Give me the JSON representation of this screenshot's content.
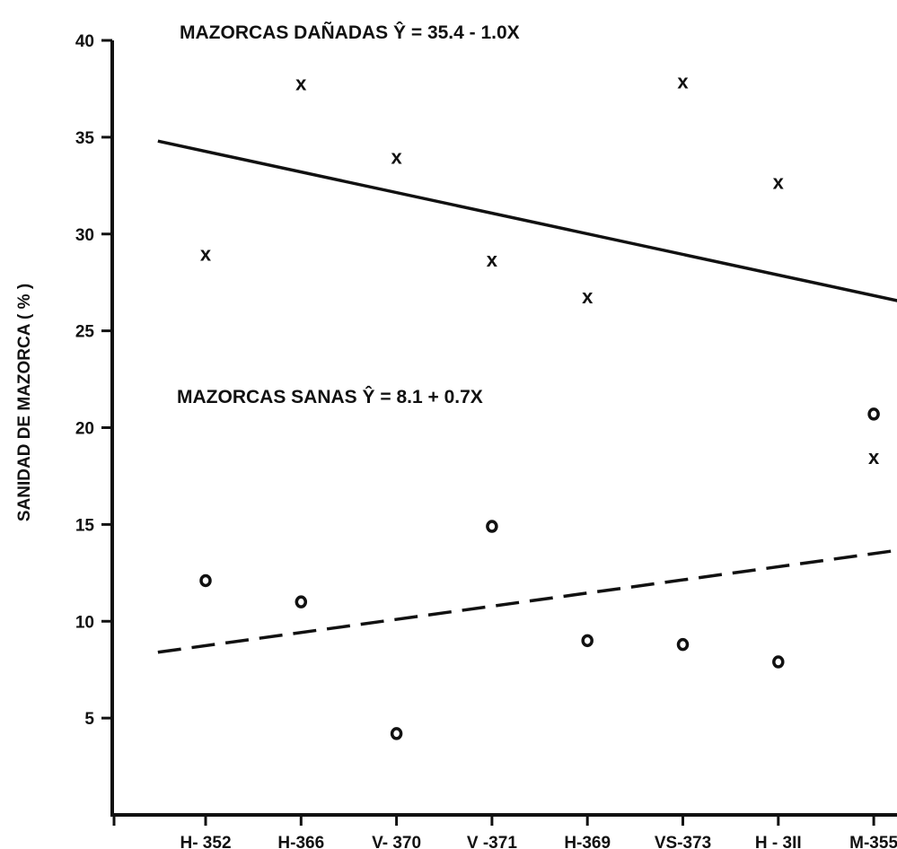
{
  "chart_data": {
    "type": "scatter",
    "ylabel": "SANIDAD DE MAZORCA ( % )",
    "xlabel": "",
    "ylim": [
      0,
      40
    ],
    "yticks": [
      5,
      10,
      15,
      20,
      25,
      30,
      35,
      40
    ],
    "categories": [
      "H- 352",
      "H-366",
      "V- 370",
      "V -371",
      "H-369",
      "VS-373",
      "H - 3II",
      "M-355"
    ],
    "grid": false,
    "series": [
      {
        "name": "MAZORCAS DAÑADAS",
        "marker": "x",
        "values": [
          29.0,
          37.8,
          34.0,
          28.7,
          26.8,
          37.9,
          32.7,
          18.5
        ],
        "equation": "Ŷ = 35.4 - 1.0X",
        "line_style": "solid",
        "line_color": "#111111"
      },
      {
        "name": "MAZORCAS SANAS",
        "marker": "o",
        "values": [
          12.1,
          11.0,
          4.2,
          14.9,
          9.0,
          8.8,
          7.9,
          20.7
        ],
        "equation": "Ŷ = 8.1 + 0.7X",
        "line_style": "dashed",
        "line_color": "#111111"
      }
    ],
    "regression_lines": [
      {
        "series": "MAZORCAS DAÑADAS",
        "x_start": 0.5,
        "y_start": 34.8,
        "x_end": 8.3,
        "y_end": 26.5
      },
      {
        "series": "MAZORCAS SANAS",
        "x_start": 0.5,
        "y_start": 8.4,
        "x_end": 8.3,
        "y_end": 13.7
      }
    ],
    "annotations": [
      {
        "label_name": "MAZORCAS DAÑADAS",
        "equation": "Ŷ = 35.4 - 1.0X",
        "position": "top-center"
      },
      {
        "label_name": "MAZORCAS SANAS",
        "equation": "Ŷ = 8.1 + 0.7X",
        "position": "middle-left"
      }
    ]
  }
}
